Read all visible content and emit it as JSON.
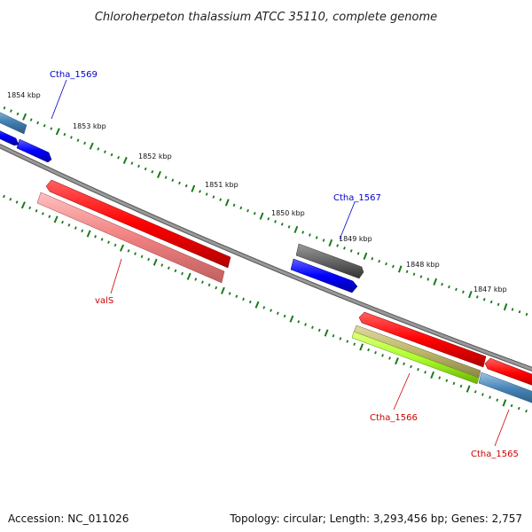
{
  "title": "Chloroherpeton thalassium ATCC 35110, complete genome",
  "footer": {
    "accession": "Accession: NC_011026",
    "summary": "Topology: circular; Length: 3,293,456 bp; Genes: 2,757"
  },
  "colors": {
    "backbone": "#888888",
    "tick": "#1a7a1a",
    "label_plus": "#0000cc",
    "label_minus": "#cc0000"
  },
  "scale": {
    "unit": "kbp",
    "major_labels": [
      "1854 kbp",
      "1853 kbp",
      "1852 kbp",
      "1851 kbp",
      "1850 kbp",
      "1849 kbp",
      "1848 kbp",
      "1847 kbp"
    ]
  },
  "genes": [
    {
      "name": "Ctha_1569",
      "strand": "+",
      "label_color": "#0000cc"
    },
    {
      "name": "Ctha_1567",
      "strand": "+",
      "label_color": "#0000cc"
    },
    {
      "name": "valS",
      "strand": "-",
      "label_color": "#cc0000"
    },
    {
      "name": "Ctha_1566",
      "strand": "-",
      "label_color": "#cc0000"
    },
    {
      "name": "Ctha_1565",
      "strand": "-",
      "label_color": "#cc0000"
    }
  ]
}
